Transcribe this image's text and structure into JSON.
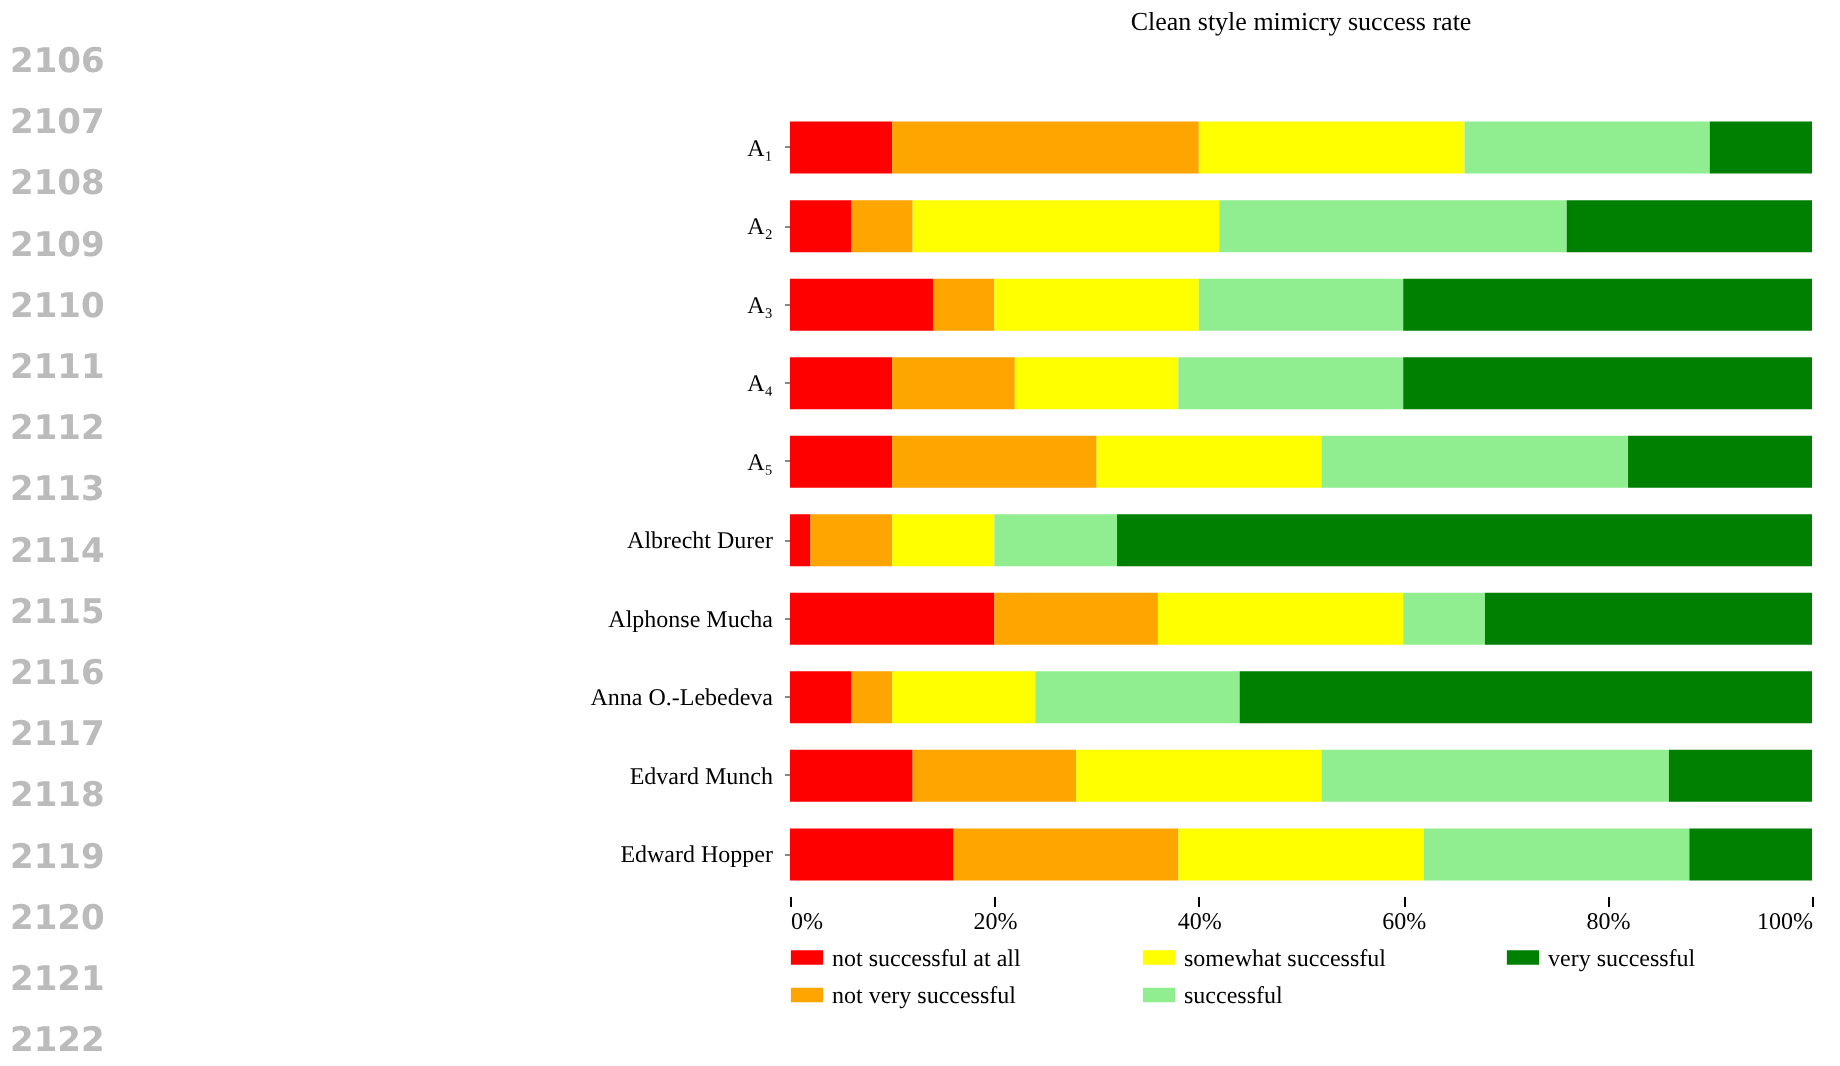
{
  "chart_data": {
    "type": "bar",
    "orientation": "horizontal",
    "stacked": true,
    "title": "Clean style mimicry success rate",
    "categories": [
      "A₁",
      "A₂",
      "A₃",
      "A₄",
      "A₅",
      "Albrecht Durer",
      "Alphonse Mucha",
      "Anna O.-Lebedeva",
      "Edvard Munch",
      "Edward Hopper"
    ],
    "series": [
      {
        "name": "not successful at all",
        "color": "#ff0000",
        "values": [
          10,
          6,
          14,
          10,
          10,
          2,
          20,
          6,
          12,
          16
        ]
      },
      {
        "name": "not very successful",
        "color": "#ffa500",
        "values": [
          30,
          6,
          6,
          12,
          20,
          8,
          16,
          4,
          16,
          22
        ]
      },
      {
        "name": "somewhat successful",
        "color": "#ffff00",
        "values": [
          26,
          30,
          20,
          16,
          22,
          10,
          24,
          14,
          24,
          24
        ]
      },
      {
        "name": "successful",
        "color": "#90ee90",
        "values": [
          24,
          34,
          20,
          22,
          30,
          12,
          8,
          20,
          34,
          26
        ]
      },
      {
        "name": "very successful",
        "color": "#008000",
        "values": [
          10,
          24,
          40,
          40,
          18,
          68,
          32,
          56,
          14,
          12
        ]
      }
    ],
    "xlim": [
      0,
      100
    ],
    "xticks": [
      {
        "value": 0,
        "label": "0%"
      },
      {
        "value": 20,
        "label": "20%"
      },
      {
        "value": 40,
        "label": "40%"
      },
      {
        "value": 60,
        "label": "60%"
      },
      {
        "value": 80,
        "label": "80%"
      },
      {
        "value": 100,
        "label": "100%"
      }
    ],
    "grid": false,
    "legend": "bottom",
    "annotations": [
      "2106",
      "2107",
      "2108",
      "2109",
      "2110",
      "2111",
      "2112",
      "2113",
      "2114",
      "2115",
      "2116",
      "2117",
      "2118",
      "2119",
      "2120",
      "2121",
      "2122"
    ]
  }
}
